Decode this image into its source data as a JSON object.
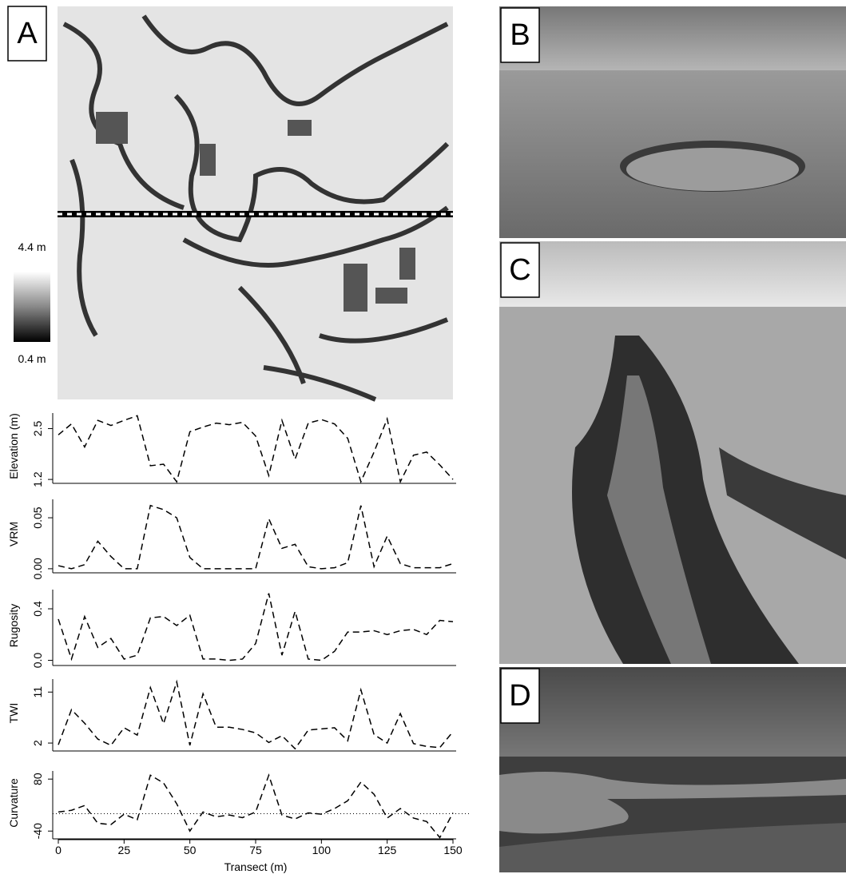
{
  "panels": {
    "a": {
      "label": "A",
      "colorbar_max": "4.4 m",
      "colorbar_min": "0.4 m"
    },
    "b": {
      "label": "B"
    },
    "c": {
      "label": "C"
    },
    "d": {
      "label": "D"
    }
  },
  "chart_data": [
    {
      "type": "line",
      "ylabel": "Elevation (m)",
      "color": "#000000",
      "x": [
        0,
        5,
        10,
        15,
        20,
        25,
        30,
        35,
        40,
        45,
        50,
        55,
        60,
        65,
        70,
        75,
        80,
        85,
        90,
        95,
        100,
        105,
        110,
        115,
        120,
        125,
        130,
        135,
        140,
        145,
        150
      ],
      "values": [
        2.34,
        2.62,
        2.03,
        2.71,
        2.58,
        2.71,
        2.83,
        1.55,
        1.59,
        1.14,
        2.42,
        2.54,
        2.64,
        2.6,
        2.66,
        2.31,
        1.3,
        2.71,
        1.72,
        2.64,
        2.73,
        2.62,
        2.25,
        1.14,
        1.9,
        2.75,
        1.14,
        1.82,
        1.9,
        1.57,
        1.2
      ],
      "xlim": [
        0,
        150
      ],
      "ylim": [
        1.1,
        3.0
      ],
      "yticks": [
        1.2,
        2.5
      ]
    },
    {
      "type": "line",
      "ylabel": "VRM",
      "color": "#000000",
      "x": [
        0,
        5,
        10,
        15,
        20,
        25,
        30,
        35,
        40,
        45,
        50,
        55,
        60,
        65,
        70,
        75,
        80,
        85,
        90,
        95,
        100,
        105,
        110,
        115,
        120,
        125,
        130,
        135,
        140,
        145,
        150
      ],
      "values": [
        0.003,
        0,
        0.004,
        0.027,
        0.012,
        0,
        0,
        0.062,
        0.058,
        0.05,
        0.011,
        0,
        0,
        0,
        0,
        0,
        0.049,
        0.02,
        0.024,
        0.002,
        0,
        0.001,
        0.006,
        0.062,
        0.002,
        0.032,
        0.005,
        0.001,
        0.001,
        0.001,
        0.005
      ],
      "xlim": [
        0,
        150
      ],
      "ylim": [
        -0.004,
        0.072
      ],
      "yticks": [
        {
          "value": 0,
          "label": "0.00"
        },
        0.05
      ]
    },
    {
      "type": "line",
      "ylabel": "Rugosity",
      "color": "#000000",
      "x": [
        0,
        5,
        10,
        15,
        20,
        25,
        30,
        35,
        40,
        45,
        50,
        55,
        60,
        65,
        70,
        75,
        80,
        85,
        90,
        95,
        100,
        105,
        110,
        115,
        120,
        125,
        130,
        135,
        140,
        145,
        150
      ],
      "values": [
        0.32,
        0.01,
        0.34,
        0.1,
        0.17,
        0.01,
        0.04,
        0.33,
        0.34,
        0.27,
        0.35,
        0.01,
        0.01,
        0,
        0.01,
        0.13,
        0.52,
        0.04,
        0.38,
        0.01,
        0,
        0.07,
        0.22,
        0.22,
        0.23,
        0.2,
        0.23,
        0.24,
        0.2,
        0.31,
        0.3
      ],
      "xlim": [
        0,
        150
      ],
      "ylim": [
        -0.04,
        0.58
      ],
      "yticks": [
        {
          "value": 0,
          "label": "0.0"
        },
        0.4
      ]
    },
    {
      "type": "line",
      "ylabel": "TWI",
      "color": "#000000",
      "x": [
        0,
        5,
        10,
        15,
        20,
        25,
        30,
        35,
        40,
        45,
        50,
        55,
        60,
        65,
        70,
        75,
        80,
        85,
        90,
        95,
        100,
        105,
        110,
        115,
        120,
        125,
        130,
        135,
        140,
        145,
        150
      ],
      "values": [
        1.7,
        7.9,
        5.5,
        2.7,
        1.6,
        4.7,
        3.4,
        11.8,
        5.4,
        12.8,
        1.6,
        10.7,
        4.8,
        4.8,
        4.4,
        3.8,
        2.1,
        3.3,
        1.0,
        4.3,
        4.5,
        4.7,
        2.4,
        11.4,
        3.5,
        2.0,
        7.2,
        1.9,
        1.4,
        1.2,
        4.0
      ],
      "xlim": [
        0,
        150
      ],
      "ylim": [
        0.6,
        14
      ],
      "yticks": [
        2,
        11
      ]
    },
    {
      "type": "line",
      "ylabel": "Curvature",
      "xlabel": "Transect (m)",
      "color": "#000000",
      "reference_line": 0,
      "x": [
        0,
        5,
        10,
        15,
        20,
        25,
        30,
        35,
        40,
        45,
        50,
        55,
        60,
        65,
        70,
        75,
        80,
        85,
        90,
        95,
        100,
        105,
        110,
        115,
        120,
        125,
        130,
        135,
        140,
        145,
        150
      ],
      "values": [
        4,
        8,
        19,
        -22,
        -25,
        -1,
        -14,
        89,
        71,
        23,
        -40,
        4,
        -7,
        -3,
        -9,
        4,
        89,
        -3,
        -12,
        2,
        -1,
        12,
        30,
        73,
        45,
        -10,
        12,
        -10,
        -18,
        -55,
        2
      ],
      "xlim": [
        0,
        150
      ],
      "ylim": [
        -58,
        108
      ],
      "yticks": [
        -40,
        80
      ],
      "xticks": [
        0,
        25,
        50,
        75,
        100,
        125,
        150
      ]
    }
  ]
}
